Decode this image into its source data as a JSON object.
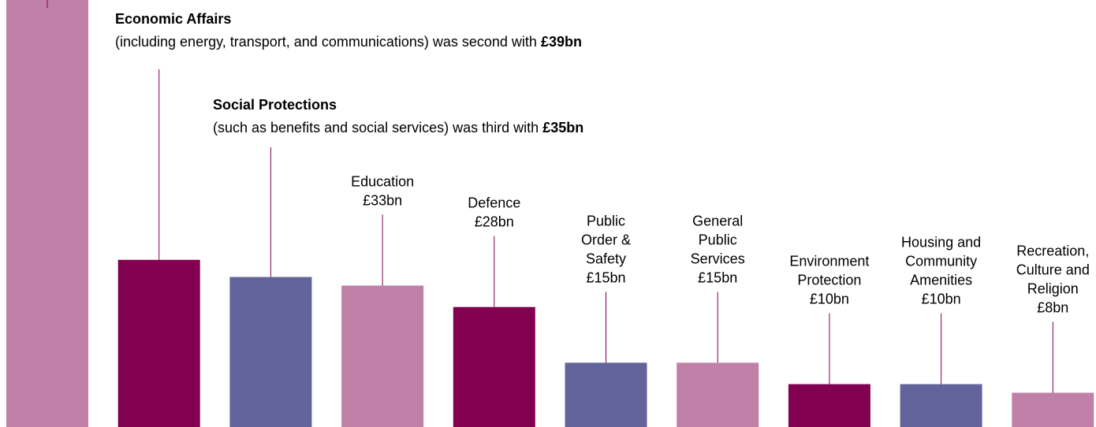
{
  "colors": {
    "pink": "#c080a8",
    "plum": "#820050",
    "slate": "#62639b",
    "text": "#000000"
  },
  "chart_data": {
    "type": "bar",
    "categories": [
      "",
      "Economic Affairs",
      "Social Protections",
      "Education",
      "Defence",
      "Public Order & Safety",
      "General Public Services",
      "Environment Protection",
      "Housing and Community Amenities",
      "Recreation, Culture and Religion"
    ],
    "values": [
      100,
      39,
      35,
      33,
      28,
      15,
      15,
      10,
      10,
      8
    ],
    "bar_colors": [
      "pink",
      "plum",
      "slate",
      "pink",
      "plum",
      "slate",
      "pink",
      "plum",
      "slate",
      "pink"
    ],
    "value_labels": [
      "",
      "£39bn",
      "£35bn",
      "£33bn",
      "£28bn",
      "£15bn",
      "£15bn",
      "£10bn",
      "£10bn",
      "£8bn"
    ],
    "ylim": [
      0,
      100
    ],
    "grid": false,
    "legend": "none",
    "annotations": [
      {
        "bar": 1,
        "heading": "Economic Affairs",
        "text": "(including energy, transport, and communications) was second with ",
        "value": "£39bn"
      },
      {
        "bar": 2,
        "heading": "Social Protections",
        "text": "(such as benefits and social services) was third with ",
        "value": "£35bn"
      }
    ],
    "bar_labels": [
      {
        "bar": 3,
        "lines": [
          "Education",
          "£33bn"
        ]
      },
      {
        "bar": 4,
        "lines": [
          "Defence",
          "£28bn"
        ]
      },
      {
        "bar": 5,
        "lines": [
          "Public",
          "Order &",
          "Safety",
          "£15bn"
        ]
      },
      {
        "bar": 6,
        "lines": [
          "General",
          "Public",
          "Services",
          "£15bn"
        ]
      },
      {
        "bar": 7,
        "lines": [
          "Environment",
          "Protection",
          "£10bn"
        ]
      },
      {
        "bar": 8,
        "lines": [
          "Housing and",
          "Community",
          "Amenities",
          "£10bn"
        ]
      },
      {
        "bar": 9,
        "lines": [
          "Recreation,",
          "Culture and",
          "Religion",
          "£8bn"
        ]
      }
    ]
  }
}
